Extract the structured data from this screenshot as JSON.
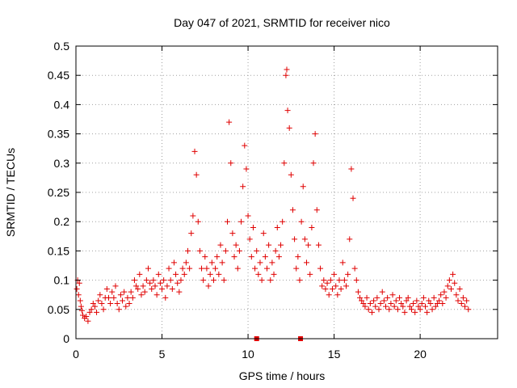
{
  "chart_data": {
    "type": "scatter",
    "title": "Day 047 of 2021, SRMTID for receiver nico",
    "xlabel": "GPS time / hours",
    "ylabel": "SRMTID / TECUs",
    "xlim": [
      0,
      24.5
    ],
    "ylim": [
      0,
      0.5
    ],
    "x_ticks": [
      {
        "value": 0,
        "label": "0"
      },
      {
        "value": 5,
        "label": "5"
      },
      {
        "value": 10,
        "label": "10"
      },
      {
        "value": 15,
        "label": "15"
      },
      {
        "value": 20,
        "label": "20"
      }
    ],
    "y_ticks": [
      {
        "value": 0,
        "label": "0"
      },
      {
        "value": 0.05,
        "label": "0.05"
      },
      {
        "value": 0.1,
        "label": "0.1"
      },
      {
        "value": 0.15,
        "label": "0.15"
      },
      {
        "value": 0.2,
        "label": "0.2"
      },
      {
        "value": 0.25,
        "label": "0.25"
      },
      {
        "value": 0.3,
        "label": "0.3"
      },
      {
        "value": 0.35,
        "label": "0.35"
      },
      {
        "value": 0.4,
        "label": "0.4"
      },
      {
        "value": 0.45,
        "label": "0.45"
      },
      {
        "value": 0.5,
        "label": "0.5"
      }
    ],
    "grid": true,
    "legend": "none",
    "marker_color": "#e00000",
    "marker": "plus",
    "series": [
      {
        "points": [
          [
            0.05,
            0.085
          ],
          [
            0.1,
            0.1
          ],
          [
            0.15,
            0.075
          ],
          [
            0.2,
            0.095
          ],
          [
            0.25,
            0.065
          ],
          [
            0.3,
            0.055
          ],
          [
            0.35,
            0.048
          ],
          [
            0.4,
            0.04
          ],
          [
            0.5,
            0.035
          ],
          [
            0.6,
            0.038
          ],
          [
            0.7,
            0.03
          ],
          [
            0.8,
            0.045
          ],
          [
            0.9,
            0.05
          ],
          [
            1.0,
            0.06
          ],
          [
            1.1,
            0.055
          ],
          [
            1.2,
            0.045
          ],
          [
            1.3,
            0.065
          ],
          [
            1.4,
            0.075
          ],
          [
            1.5,
            0.06
          ],
          [
            1.6,
            0.05
          ],
          [
            1.7,
            0.07
          ],
          [
            1.8,
            0.085
          ],
          [
            1.9,
            0.07
          ],
          [
            2.0,
            0.06
          ],
          [
            2.1,
            0.08
          ],
          [
            2.2,
            0.07
          ],
          [
            2.3,
            0.09
          ],
          [
            2.4,
            0.06
          ],
          [
            2.5,
            0.05
          ],
          [
            2.6,
            0.075
          ],
          [
            2.7,
            0.065
          ],
          [
            2.8,
            0.08
          ],
          [
            2.9,
            0.055
          ],
          [
            3.0,
            0.07
          ],
          [
            3.1,
            0.06
          ],
          [
            3.2,
            0.08
          ],
          [
            3.3,
            0.07
          ],
          [
            3.4,
            0.1
          ],
          [
            3.5,
            0.09
          ],
          [
            3.6,
            0.085
          ],
          [
            3.7,
            0.11
          ],
          [
            3.8,
            0.075
          ],
          [
            3.9,
            0.09
          ],
          [
            4.0,
            0.08
          ],
          [
            4.1,
            0.1
          ],
          [
            4.2,
            0.12
          ],
          [
            4.3,
            0.095
          ],
          [
            4.4,
            0.085
          ],
          [
            4.5,
            0.1
          ],
          [
            4.6,
            0.09
          ],
          [
            4.7,
            0.075
          ],
          [
            4.8,
            0.11
          ],
          [
            4.9,
            0.095
          ],
          [
            5.0,
            0.085
          ],
          [
            5.1,
            0.1
          ],
          [
            5.2,
            0.07
          ],
          [
            5.3,
            0.09
          ],
          [
            5.4,
            0.12
          ],
          [
            5.5,
            0.1
          ],
          [
            5.6,
            0.085
          ],
          [
            5.7,
            0.13
          ],
          [
            5.8,
            0.11
          ],
          [
            5.9,
            0.095
          ],
          [
            6.0,
            0.08
          ],
          [
            6.1,
            0.1
          ],
          [
            6.2,
            0.12
          ],
          [
            6.3,
            0.11
          ],
          [
            6.4,
            0.13
          ],
          [
            6.5,
            0.15
          ],
          [
            6.6,
            0.12
          ],
          [
            6.7,
            0.18
          ],
          [
            6.8,
            0.21
          ],
          [
            6.9,
            0.32
          ],
          [
            7.0,
            0.28
          ],
          [
            7.1,
            0.2
          ],
          [
            7.2,
            0.15
          ],
          [
            7.3,
            0.12
          ],
          [
            7.4,
            0.1
          ],
          [
            7.5,
            0.14
          ],
          [
            7.6,
            0.12
          ],
          [
            7.7,
            0.09
          ],
          [
            7.8,
            0.11
          ],
          [
            7.9,
            0.13
          ],
          [
            8.0,
            0.1
          ],
          [
            8.1,
            0.12
          ],
          [
            8.2,
            0.14
          ],
          [
            8.3,
            0.11
          ],
          [
            8.4,
            0.16
          ],
          [
            8.5,
            0.13
          ],
          [
            8.6,
            0.1
          ],
          [
            8.7,
            0.15
          ],
          [
            8.8,
            0.2
          ],
          [
            8.9,
            0.37
          ],
          [
            9.0,
            0.3
          ],
          [
            9.1,
            0.18
          ],
          [
            9.2,
            0.14
          ],
          [
            9.3,
            0.16
          ],
          [
            9.4,
            0.12
          ],
          [
            9.5,
            0.15
          ],
          [
            9.6,
            0.2
          ],
          [
            9.7,
            0.26
          ],
          [
            9.8,
            0.33
          ],
          [
            9.9,
            0.29
          ],
          [
            10.0,
            0.21
          ],
          [
            10.1,
            0.17
          ],
          [
            10.2,
            0.14
          ],
          [
            10.3,
            0.19
          ],
          [
            10.4,
            0.12
          ],
          [
            10.5,
            0.15
          ],
          [
            10.6,
            0.11
          ],
          [
            10.7,
            0.13
          ],
          [
            10.8,
            0.1
          ],
          [
            10.9,
            0.18
          ],
          [
            11.0,
            0.14
          ],
          [
            11.1,
            0.12
          ],
          [
            11.2,
            0.16
          ],
          [
            11.3,
            0.1
          ],
          [
            11.4,
            0.13
          ],
          [
            11.5,
            0.11
          ],
          [
            11.6,
            0.15
          ],
          [
            11.7,
            0.19
          ],
          [
            11.8,
            0.14
          ],
          [
            11.9,
            0.16
          ],
          [
            12.0,
            0.2
          ],
          [
            12.1,
            0.3
          ],
          [
            12.2,
            0.45
          ],
          [
            12.25,
            0.46
          ],
          [
            12.3,
            0.39
          ],
          [
            12.4,
            0.36
          ],
          [
            12.5,
            0.28
          ],
          [
            12.6,
            0.22
          ],
          [
            12.7,
            0.17
          ],
          [
            12.8,
            0.12
          ],
          [
            12.9,
            0.14
          ],
          [
            13.0,
            0.1
          ],
          [
            13.1,
            0.2
          ],
          [
            13.2,
            0.26
          ],
          [
            13.3,
            0.17
          ],
          [
            13.4,
            0.13
          ],
          [
            13.5,
            0.16
          ],
          [
            13.6,
            0.11
          ],
          [
            13.7,
            0.19
          ],
          [
            13.8,
            0.3
          ],
          [
            13.9,
            0.35
          ],
          [
            14.0,
            0.22
          ],
          [
            14.1,
            0.16
          ],
          [
            14.2,
            0.12
          ],
          [
            14.3,
            0.09
          ],
          [
            14.4,
            0.1
          ],
          [
            14.5,
            0.085
          ],
          [
            14.6,
            0.095
          ],
          [
            14.7,
            0.075
          ],
          [
            14.8,
            0.1
          ],
          [
            14.9,
            0.085
          ],
          [
            15.0,
            0.11
          ],
          [
            15.1,
            0.09
          ],
          [
            15.2,
            0.075
          ],
          [
            15.3,
            0.1
          ],
          [
            15.4,
            0.085
          ],
          [
            15.5,
            0.13
          ],
          [
            15.6,
            0.1
          ],
          [
            15.7,
            0.09
          ],
          [
            15.8,
            0.11
          ],
          [
            15.9,
            0.17
          ],
          [
            16.0,
            0.29
          ],
          [
            16.1,
            0.24
          ],
          [
            16.2,
            0.12
          ],
          [
            16.3,
            0.1
          ],
          [
            16.4,
            0.08
          ],
          [
            16.5,
            0.07
          ],
          [
            16.6,
            0.065
          ],
          [
            16.7,
            0.06
          ],
          [
            16.8,
            0.055
          ],
          [
            16.9,
            0.07
          ],
          [
            17.0,
            0.05
          ],
          [
            17.1,
            0.06
          ],
          [
            17.2,
            0.045
          ],
          [
            17.3,
            0.065
          ],
          [
            17.4,
            0.055
          ],
          [
            17.5,
            0.07
          ],
          [
            17.6,
            0.05
          ],
          [
            17.7,
            0.06
          ],
          [
            17.8,
            0.08
          ],
          [
            17.9,
            0.065
          ],
          [
            18.0,
            0.055
          ],
          [
            18.1,
            0.07
          ],
          [
            18.2,
            0.05
          ],
          [
            18.3,
            0.06
          ],
          [
            18.4,
            0.075
          ],
          [
            18.5,
            0.055
          ],
          [
            18.6,
            0.065
          ],
          [
            18.7,
            0.05
          ],
          [
            18.8,
            0.07
          ],
          [
            18.9,
            0.06
          ],
          [
            19.0,
            0.055
          ],
          [
            19.1,
            0.045
          ],
          [
            19.2,
            0.065
          ],
          [
            19.3,
            0.07
          ],
          [
            19.4,
            0.055
          ],
          [
            19.5,
            0.05
          ],
          [
            19.6,
            0.06
          ],
          [
            19.7,
            0.045
          ],
          [
            19.8,
            0.065
          ],
          [
            19.9,
            0.055
          ],
          [
            20.0,
            0.05
          ],
          [
            20.1,
            0.06
          ],
          [
            20.2,
            0.07
          ],
          [
            20.3,
            0.055
          ],
          [
            20.4,
            0.045
          ],
          [
            20.5,
            0.065
          ],
          [
            20.6,
            0.06
          ],
          [
            20.7,
            0.05
          ],
          [
            20.8,
            0.07
          ],
          [
            20.9,
            0.055
          ],
          [
            21.0,
            0.06
          ],
          [
            21.1,
            0.065
          ],
          [
            21.2,
            0.075
          ],
          [
            21.3,
            0.06
          ],
          [
            21.4,
            0.08
          ],
          [
            21.5,
            0.07
          ],
          [
            21.6,
            0.09
          ],
          [
            21.7,
            0.1
          ],
          [
            21.8,
            0.085
          ],
          [
            21.9,
            0.11
          ],
          [
            22.0,
            0.095
          ],
          [
            22.1,
            0.075
          ],
          [
            22.2,
            0.065
          ],
          [
            22.3,
            0.085
          ],
          [
            22.4,
            0.06
          ],
          [
            22.5,
            0.07
          ],
          [
            22.6,
            0.055
          ],
          [
            22.7,
            0.065
          ],
          [
            22.8,
            0.05
          ]
        ]
      },
      {
        "marker": "square",
        "points": [
          [
            10.5,
            0.0
          ],
          [
            13.05,
            0.0
          ]
        ]
      }
    ]
  }
}
